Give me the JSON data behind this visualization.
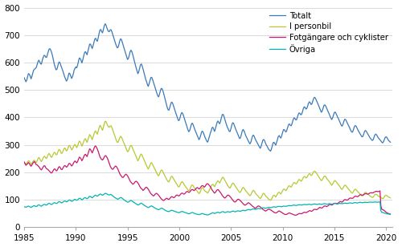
{
  "legend_labels": [
    "Totalt",
    "I personbil",
    "Fotgängare och cyklister",
    "Övriga"
  ],
  "colors": [
    "#3a7aba",
    "#b8c832",
    "#c8186e",
    "#00b4b4"
  ],
  "linewidth": 0.9,
  "xlim": [
    1985.0,
    2020.6
  ],
  "ylim": [
    0,
    800
  ],
  "yticks": [
    0,
    100,
    200,
    300,
    400,
    500,
    600,
    700,
    800
  ],
  "xticks": [
    1985,
    1990,
    1995,
    2000,
    2005,
    2010,
    2015,
    2020
  ],
  "bg_color": "#ffffff",
  "grid_color": "#cccccc",
  "start_year": 1985,
  "start_month": 1,
  "end_year": 2020,
  "end_month": 6,
  "totalt": [
    545,
    538,
    530,
    535,
    548,
    560,
    558,
    552,
    540,
    548,
    560,
    572,
    575,
    578,
    580,
    590,
    600,
    610,
    605,
    598,
    590,
    605,
    615,
    625,
    628,
    622,
    615,
    625,
    635,
    648,
    652,
    648,
    640,
    630,
    615,
    600,
    588,
    578,
    570,
    580,
    592,
    605,
    600,
    592,
    582,
    575,
    565,
    555,
    545,
    538,
    530,
    540,
    552,
    565,
    558,
    550,
    540,
    550,
    560,
    575,
    580,
    585,
    580,
    592,
    605,
    618,
    615,
    608,
    598,
    610,
    622,
    635,
    640,
    635,
    628,
    640,
    653,
    667,
    668,
    660,
    650,
    660,
    672,
    685,
    690,
    682,
    675,
    688,
    703,
    718,
    722,
    715,
    705,
    717,
    730,
    742,
    740,
    730,
    720,
    715,
    710,
    718,
    722,
    715,
    705,
    695,
    685,
    675,
    665,
    658,
    650,
    660,
    672,
    685,
    688,
    680,
    668,
    658,
    648,
    638,
    628,
    618,
    608,
    618,
    630,
    643,
    646,
    638,
    627,
    615,
    603,
    590,
    578,
    568,
    558,
    568,
    580,
    593,
    595,
    587,
    576,
    564,
    552,
    540,
    530,
    521,
    513,
    522,
    533,
    545,
    547,
    540,
    530,
    520,
    510,
    500,
    490,
    481,
    473,
    482,
    493,
    505,
    507,
    500,
    490,
    478,
    466,
    453,
    440,
    431,
    423,
    432,
    443,
    455,
    457,
    450,
    440,
    430,
    420,
    412,
    402,
    393,
    385,
    394,
    405,
    417,
    419,
    412,
    402,
    392,
    382,
    372,
    362,
    353,
    346,
    354,
    365,
    378,
    380,
    373,
    363,
    355,
    348,
    340,
    332,
    325,
    318,
    327,
    337,
    349,
    350,
    344,
    335,
    327,
    320,
    313,
    310,
    320,
    330,
    342,
    350,
    362,
    365,
    358,
    348,
    358,
    370,
    382,
    388,
    382,
    375,
    385,
    397,
    410,
    413,
    406,
    395,
    385,
    375,
    365,
    360,
    352,
    345,
    355,
    367,
    380,
    382,
    375,
    365,
    357,
    350,
    343,
    335,
    327,
    320,
    330,
    342,
    355,
    357,
    350,
    340,
    333,
    327,
    320,
    313,
    308,
    302,
    312,
    323,
    335,
    336,
    330,
    321,
    315,
    310,
    304,
    298,
    292,
    287,
    296,
    307,
    318,
    320,
    315,
    307,
    300,
    295,
    289,
    283,
    280,
    277,
    285,
    296,
    308,
    310,
    305,
    298,
    308,
    318,
    330,
    335,
    330,
    323,
    332,
    343,
    355,
    357,
    352,
    345,
    352,
    362,
    373,
    378,
    373,
    367,
    375,
    385,
    397,
    400,
    395,
    388,
    395,
    405,
    415,
    418,
    413,
    407,
    415,
    425,
    437,
    440,
    435,
    428,
    435,
    445,
    455,
    458,
    452,
    445,
    452,
    462,
    472,
    474,
    469,
    462,
    455,
    448,
    440,
    432,
    425,
    418,
    425,
    435,
    445,
    446,
    441,
    434,
    427,
    420,
    413,
    405,
    398,
    392,
    398,
    408,
    418,
    420,
    415,
    408,
    401,
    395,
    388,
    380,
    373,
    367,
    373,
    383,
    393,
    394,
    389,
    382,
    375,
    370,
    363,
    355,
    350,
    344,
    350,
    360,
    370,
    371,
    367,
    360,
    353,
    348,
    342,
    338,
    333,
    327,
    333,
    343,
    352,
    353,
    348,
    342,
    337,
    332,
    326,
    322,
    319,
    315,
    320,
    330,
    338,
    340,
    336,
    330,
    325,
    322,
    318,
    314,
    310,
    307,
    312,
    320,
    328,
    330,
    327,
    321,
    316,
    313,
    310
  ],
  "personbil": [
    238,
    233,
    228,
    233,
    238,
    243,
    240,
    235,
    228,
    233,
    238,
    243,
    245,
    240,
    235,
    240,
    248,
    255,
    252,
    246,
    238,
    243,
    250,
    257,
    260,
    255,
    248,
    255,
    263,
    270,
    267,
    260,
    252,
    258,
    265,
    272,
    274,
    268,
    261,
    268,
    277,
    285,
    282,
    275,
    266,
    272,
    280,
    287,
    290,
    283,
    276,
    283,
    292,
    300,
    296,
    289,
    280,
    286,
    293,
    300,
    302,
    296,
    289,
    297,
    306,
    315,
    311,
    304,
    295,
    303,
    312,
    320,
    323,
    316,
    309,
    318,
    328,
    338,
    335,
    328,
    318,
    328,
    338,
    348,
    352,
    344,
    337,
    348,
    360,
    372,
    370,
    362,
    350,
    362,
    374,
    385,
    388,
    380,
    372,
    368,
    362,
    368,
    372,
    366,
    357,
    348,
    338,
    330,
    320,
    313,
    306,
    313,
    321,
    330,
    332,
    326,
    318,
    310,
    303,
    295,
    287,
    280,
    273,
    280,
    289,
    297,
    299,
    293,
    285,
    278,
    271,
    263,
    255,
    248,
    241,
    248,
    257,
    265,
    267,
    261,
    253,
    247,
    240,
    232,
    225,
    218,
    212,
    218,
    226,
    234,
    236,
    230,
    223,
    217,
    211,
    204,
    198,
    192,
    186,
    192,
    200,
    208,
    210,
    204,
    197,
    191,
    185,
    179,
    173,
    168,
    163,
    169,
    177,
    185,
    187,
    182,
    175,
    170,
    165,
    160,
    155,
    150,
    145,
    150,
    158,
    165,
    167,
    163,
    157,
    152,
    148,
    143,
    140,
    136,
    132,
    137,
    145,
    153,
    155,
    151,
    145,
    141,
    138,
    134,
    130,
    126,
    122,
    127,
    135,
    143,
    145,
    141,
    135,
    132,
    130,
    127,
    125,
    130,
    136,
    142,
    148,
    155,
    157,
    153,
    147,
    153,
    160,
    166,
    170,
    166,
    160,
    167,
    174,
    181,
    183,
    179,
    172,
    167,
    161,
    155,
    150,
    146,
    141,
    146,
    153,
    160,
    162,
    158,
    152,
    147,
    143,
    138,
    133,
    129,
    125,
    130,
    137,
    144,
    146,
    142,
    136,
    132,
    129,
    125,
    121,
    117,
    114,
    119,
    126,
    133,
    135,
    131,
    125,
    121,
    118,
    115,
    111,
    107,
    104,
    109,
    115,
    122,
    124,
    121,
    115,
    111,
    109,
    106,
    102,
    100,
    98,
    102,
    108,
    115,
    117,
    115,
    110,
    115,
    120,
    126,
    128,
    125,
    120,
    126,
    132,
    138,
    140,
    137,
    132,
    138,
    143,
    150,
    152,
    149,
    144,
    150,
    156,
    162,
    164,
    161,
    156,
    161,
    167,
    173,
    175,
    171,
    166,
    171,
    178,
    184,
    186,
    183,
    178,
    183,
    188,
    194,
    196,
    192,
    187,
    192,
    198,
    204,
    205,
    202,
    197,
    192,
    188,
    183,
    178,
    173,
    169,
    173,
    180,
    186,
    187,
    184,
    179,
    174,
    171,
    167,
    162,
    157,
    153,
    157,
    163,
    169,
    170,
    167,
    162,
    158,
    155,
    151,
    146,
    141,
    137,
    141,
    147,
    153,
    154,
    151,
    146,
    142,
    139,
    135,
    131,
    127,
    123,
    127,
    133,
    138,
    139,
    136,
    132,
    128,
    126,
    122,
    119,
    116,
    113,
    116,
    122,
    127,
    128,
    125,
    122,
    119,
    117,
    114,
    112,
    110,
    108,
    110,
    115,
    120,
    121,
    119,
    116,
    113,
    112,
    110,
    108,
    106,
    104,
    106,
    111,
    116,
    117,
    115,
    112,
    110,
    109,
    107
  ],
  "fotgangare": [
    238,
    232,
    226,
    228,
    232,
    236,
    232,
    227,
    222,
    226,
    232,
    237,
    240,
    235,
    228,
    228,
    225,
    222,
    218,
    213,
    208,
    212,
    218,
    223,
    226,
    220,
    213,
    213,
    210,
    207,
    204,
    200,
    196,
    200,
    206,
    211,
    214,
    209,
    204,
    208,
    215,
    222,
    220,
    215,
    208,
    212,
    218,
    223,
    226,
    222,
    218,
    222,
    228,
    234,
    232,
    228,
    222,
    227,
    233,
    239,
    242,
    238,
    234,
    240,
    248,
    256,
    254,
    249,
    242,
    248,
    256,
    263,
    266,
    262,
    257,
    266,
    276,
    286,
    284,
    278,
    270,
    278,
    286,
    294,
    297,
    292,
    286,
    278,
    268,
    258,
    252,
    248,
    244,
    248,
    254,
    260,
    262,
    257,
    252,
    244,
    234,
    225,
    218,
    214,
    210,
    213,
    218,
    222,
    224,
    219,
    214,
    207,
    199,
    192,
    188,
    184,
    180,
    183,
    188,
    192,
    194,
    190,
    186,
    180,
    173,
    167,
    163,
    160,
    156,
    159,
    163,
    167,
    168,
    165,
    161,
    156,
    149,
    144,
    141,
    138,
    134,
    137,
    141,
    145,
    146,
    143,
    139,
    134,
    128,
    123,
    120,
    117,
    114,
    116,
    120,
    123,
    124,
    121,
    118,
    114,
    109,
    105,
    102,
    99,
    97,
    99,
    102,
    105,
    106,
    103,
    101,
    103,
    107,
    111,
    112,
    110,
    107,
    109,
    113,
    117,
    118,
    116,
    113,
    116,
    120,
    124,
    125,
    123,
    120,
    122,
    126,
    130,
    131,
    129,
    126,
    129,
    133,
    137,
    138,
    136,
    133,
    136,
    140,
    144,
    145,
    142,
    139,
    142,
    147,
    151,
    152,
    150,
    146,
    149,
    154,
    158,
    159,
    156,
    152,
    149,
    143,
    137,
    133,
    128,
    124,
    127,
    131,
    136,
    138,
    135,
    130,
    127,
    122,
    117,
    113,
    109,
    106,
    108,
    112,
    116,
    118,
    116,
    113,
    110,
    105,
    101,
    97,
    94,
    91,
    93,
    97,
    101,
    103,
    101,
    98,
    96,
    91,
    88,
    85,
    82,
    80,
    82,
    85,
    88,
    90,
    88,
    85,
    83,
    79,
    76,
    74,
    71,
    69,
    71,
    74,
    77,
    78,
    76,
    74,
    72,
    68,
    65,
    63,
    61,
    59,
    60,
    63,
    65,
    67,
    65,
    63,
    62,
    59,
    57,
    55,
    53,
    52,
    53,
    55,
    58,
    60,
    58,
    56,
    55,
    52,
    50,
    48,
    47,
    46,
    47,
    49,
    51,
    53,
    51,
    50,
    49,
    47,
    46,
    45,
    44,
    44,
    45,
    47,
    49,
    51,
    50,
    49,
    50,
    52,
    54,
    55,
    54,
    53,
    55,
    57,
    59,
    61,
    60,
    58,
    59,
    62,
    65,
    66,
    65,
    64,
    65,
    68,
    71,
    73,
    71,
    70,
    71,
    74,
    77,
    78,
    77,
    75,
    77,
    79,
    82,
    84,
    82,
    81,
    82,
    85,
    87,
    88,
    87,
    86,
    87,
    89,
    92,
    94,
    93,
    91,
    93,
    97,
    101,
    101,
    100,
    98,
    100,
    103,
    106,
    107,
    106,
    105,
    106,
    109,
    113,
    114,
    113,
    111,
    112,
    115,
    118,
    119,
    118,
    117,
    117,
    120,
    122,
    123,
    122,
    121,
    121,
    123,
    125,
    126,
    126,
    125,
    126,
    128,
    130,
    131,
    131,
    130,
    130,
    131,
    133,
    68,
    66,
    64,
    63,
    60,
    58,
    55,
    53,
    51,
    50,
    49,
    48
  ],
  "ovriga": [
    75,
    74,
    73,
    74,
    76,
    77,
    76,
    74,
    72,
    74,
    76,
    78,
    79,
    77,
    75,
    77,
    80,
    82,
    81,
    79,
    76,
    78,
    81,
    83,
    84,
    82,
    80,
    82,
    85,
    88,
    87,
    85,
    82,
    84,
    87,
    89,
    90,
    88,
    86,
    88,
    91,
    94,
    93,
    91,
    88,
    90,
    93,
    95,
    96,
    94,
    92,
    94,
    97,
    100,
    99,
    97,
    94,
    96,
    99,
    101,
    102,
    100,
    98,
    100,
    103,
    106,
    105,
    103,
    100,
    102,
    105,
    107,
    108,
    106,
    104,
    106,
    110,
    113,
    112,
    110,
    107,
    110,
    113,
    116,
    117,
    115,
    113,
    115,
    118,
    121,
    121,
    119,
    116,
    118,
    121,
    123,
    124,
    122,
    120,
    119,
    117,
    119,
    120,
    118,
    115,
    112,
    110,
    108,
    106,
    104,
    102,
    103,
    106,
    108,
    109,
    107,
    104,
    101,
    99,
    97,
    95,
    93,
    91,
    92,
    95,
    97,
    98,
    96,
    93,
    91,
    89,
    87,
    85,
    83,
    81,
    82,
    85,
    87,
    88,
    86,
    83,
    81,
    79,
    77,
    75,
    73,
    72,
    73,
    75,
    77,
    78,
    76,
    74,
    72,
    70,
    68,
    67,
    65,
    64,
    65,
    67,
    69,
    70,
    68,
    66,
    64,
    62,
    60,
    59,
    58,
    57,
    58,
    60,
    62,
    62,
    61,
    59,
    58,
    57,
    56,
    55,
    54,
    53,
    54,
    56,
    57,
    58,
    57,
    55,
    54,
    53,
    52,
    51,
    50,
    49,
    50,
    52,
    53,
    54,
    53,
    51,
    50,
    49,
    48,
    47,
    47,
    46,
    47,
    48,
    50,
    50,
    49,
    47,
    47,
    46,
    45,
    45,
    46,
    47,
    49,
    50,
    52,
    53,
    52,
    50,
    51,
    53,
    54,
    55,
    54,
    52,
    53,
    55,
    57,
    57,
    56,
    54,
    54,
    55,
    57,
    57,
    56,
    55,
    56,
    57,
    59,
    59,
    58,
    56,
    57,
    58,
    60,
    60,
    59,
    58,
    59,
    60,
    62,
    62,
    61,
    60,
    61,
    63,
    64,
    65,
    64,
    63,
    64,
    65,
    67,
    67,
    66,
    65,
    66,
    67,
    68,
    69,
    68,
    67,
    68,
    69,
    71,
    71,
    70,
    69,
    70,
    71,
    72,
    73,
    72,
    71,
    72,
    73,
    74,
    75,
    74,
    73,
    74,
    75,
    76,
    76,
    76,
    75,
    75,
    76,
    77,
    77,
    77,
    76,
    77,
    78,
    79,
    79,
    79,
    78,
    79,
    80,
    81,
    81,
    80,
    79,
    80,
    81,
    82,
    82,
    82,
    81,
    81,
    82,
    83,
    83,
    83,
    82,
    82,
    83,
    84,
    84,
    83,
    82,
    83,
    84,
    85,
    85,
    84,
    83,
    83,
    84,
    85,
    85,
    84,
    83,
    84,
    85,
    86,
    86,
    85,
    84,
    84,
    85,
    86,
    86,
    85,
    84,
    85,
    86,
    87,
    87,
    86,
    85,
    85,
    86,
    87,
    87,
    87,
    86,
    86,
    87,
    88,
    88,
    87,
    87,
    87,
    88,
    89,
    89,
    88,
    87,
    88,
    89,
    90,
    90,
    89,
    88,
    89,
    90,
    91,
    91,
    90,
    89,
    90,
    91,
    91,
    91,
    91,
    90,
    91,
    91,
    92,
    92,
    91,
    91,
    91,
    92,
    92,
    92,
    92,
    91,
    92,
    92,
    93,
    55,
    54,
    54,
    53,
    52,
    51,
    50,
    49,
    49,
    48,
    48,
    47
  ]
}
